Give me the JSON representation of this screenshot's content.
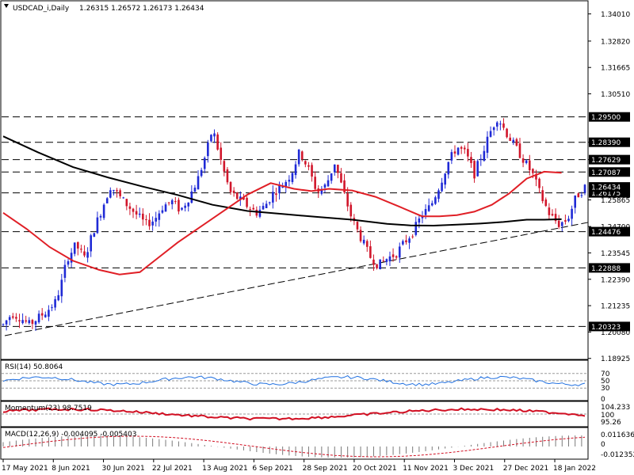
{
  "colors": {
    "background": "#ffffff",
    "candle_up": "#1f2ad6",
    "candle_down": "#d1162b",
    "ma_short": "#e01f26",
    "ma_long": "#000000",
    "level_label_bg": "#000000",
    "level_label_text": "#ffffff",
    "rsi": "#1f6fe0",
    "momentum": "#d10f22",
    "macd_signal": "#d10f22",
    "macd_hist": "#7a7a7a"
  },
  "header": {
    "symbol": "USDCAD_i,Daily",
    "ohlc": "1.26315 1.26572 1.26173 1.26434"
  },
  "chart_data": [
    {
      "type": "candlestick",
      "name": "main",
      "ylim": [
        1.1895,
        1.3455
      ],
      "price_ticks": [
        "1.34010",
        "1.32820",
        "1.31665",
        "1.30510",
        "1.28390",
        "1.27629",
        "1.25865",
        "1.24700",
        "1.23545",
        "1.22390",
        "1.21235",
        "1.20080",
        "1.18925"
      ],
      "levels": [
        {
          "label": "1.29500",
          "value": 1.295
        },
        {
          "label": "1.28390",
          "value": 1.2839
        },
        {
          "label": "1.27629",
          "value": 1.27629
        },
        {
          "label": "1.27087",
          "value": 1.27087
        },
        {
          "label": "1.26175",
          "value": 1.26175
        },
        {
          "label": "1.24476",
          "value": 1.24476
        },
        {
          "label": "1.22888",
          "value": 1.22888
        },
        {
          "label": "1.20323",
          "value": 1.20323
        }
      ],
      "current_price": {
        "label": "1.26434",
        "value": 1.26434
      },
      "trendline": {
        "from": [
          "2021-05-17",
          1.1992
        ],
        "to": [
          "2022-01-25",
          1.2488
        ]
      },
      "ma_short_path": [
        [
          0,
          1.253
        ],
        [
          0.04,
          1.246
        ],
        [
          0.08,
          1.238
        ],
        [
          0.12,
          1.232
        ],
        [
          0.165,
          1.228
        ],
        [
          0.2,
          1.226
        ],
        [
          0.235,
          1.227
        ],
        [
          0.265,
          1.233
        ],
        [
          0.3,
          1.24
        ],
        [
          0.34,
          1.247
        ],
        [
          0.38,
          1.254
        ],
        [
          0.42,
          1.261
        ],
        [
          0.46,
          1.266
        ],
        [
          0.5,
          1.2635
        ],
        [
          0.53,
          1.2625
        ],
        [
          0.56,
          1.2635
        ],
        [
          0.6,
          1.2628
        ],
        [
          0.64,
          1.26
        ],
        [
          0.68,
          1.2558
        ],
        [
          0.72,
          1.2515
        ],
        [
          0.75,
          1.2515
        ],
        [
          0.78,
          1.252
        ],
        [
          0.81,
          1.2535
        ],
        [
          0.84,
          1.2565
        ],
        [
          0.87,
          1.2615
        ],
        [
          0.9,
          1.268
        ],
        [
          0.93,
          1.271
        ],
        [
          0.96,
          1.2705
        ]
      ],
      "ma_long_path": [
        [
          0,
          1.2865
        ],
        [
          0.06,
          1.2795
        ],
        [
          0.12,
          1.273
        ],
        [
          0.18,
          1.2685
        ],
        [
          0.24,
          1.2645
        ],
        [
          0.3,
          1.2608
        ],
        [
          0.36,
          1.2565
        ],
        [
          0.42,
          1.2538
        ],
        [
          0.48,
          1.2525
        ],
        [
          0.54,
          1.2512
        ],
        [
          0.6,
          1.25
        ],
        [
          0.66,
          1.2482
        ],
        [
          0.7,
          1.2475
        ],
        [
          0.74,
          1.2474
        ],
        [
          0.78,
          1.2478
        ],
        [
          0.82,
          1.2483
        ],
        [
          0.86,
          1.249
        ],
        [
          0.9,
          1.25
        ],
        [
          0.93,
          1.25
        ],
        [
          0.96,
          1.2502
        ]
      ],
      "price_path": [
        [
          0,
          1.204
        ],
        [
          0.015,
          1.209
        ],
        [
          0.03,
          1.207
        ],
        [
          0.045,
          1.204
        ],
        [
          0.06,
          1.207
        ],
        [
          0.075,
          1.21
        ],
        [
          0.09,
          1.214
        ],
        [
          0.1,
          1.222
        ],
        [
          0.11,
          1.233
        ],
        [
          0.125,
          1.239
        ],
        [
          0.14,
          1.233
        ],
        [
          0.155,
          1.245
        ],
        [
          0.17,
          1.255
        ],
        [
          0.185,
          1.265
        ],
        [
          0.2,
          1.26
        ],
        [
          0.215,
          1.256
        ],
        [
          0.23,
          1.252
        ],
        [
          0.245,
          1.248
        ],
        [
          0.26,
          1.25
        ],
        [
          0.275,
          1.256
        ],
        [
          0.29,
          1.258
        ],
        [
          0.305,
          1.254
        ],
        [
          0.32,
          1.26
        ],
        [
          0.335,
          1.268
        ],
        [
          0.35,
          1.28
        ],
        [
          0.36,
          1.29
        ],
        [
          0.375,
          1.275
        ],
        [
          0.39,
          1.262
        ],
        [
          0.405,
          1.259
        ],
        [
          0.42,
          1.256
        ],
        [
          0.435,
          1.253
        ],
        [
          0.45,
          1.256
        ],
        [
          0.465,
          1.262
        ],
        [
          0.48,
          1.265
        ],
        [
          0.495,
          1.27
        ],
        [
          0.51,
          1.28
        ],
        [
          0.525,
          1.272
        ],
        [
          0.54,
          1.262
        ],
        [
          0.555,
          1.265
        ],
        [
          0.57,
          1.275
        ],
        [
          0.585,
          1.262
        ],
        [
          0.6,
          1.25
        ],
        [
          0.615,
          1.242
        ],
        [
          0.63,
          1.234
        ],
        [
          0.645,
          1.23
        ],
        [
          0.66,
          1.233
        ],
        [
          0.675,
          1.235
        ],
        [
          0.69,
          1.24
        ],
        [
          0.705,
          1.245
        ],
        [
          0.72,
          1.252
        ],
        [
          0.735,
          1.256
        ],
        [
          0.75,
          1.265
        ],
        [
          0.765,
          1.275
        ],
        [
          0.78,
          1.282
        ],
        [
          0.795,
          1.279
        ],
        [
          0.81,
          1.27
        ],
        [
          0.825,
          1.28
        ],
        [
          0.84,
          1.29
        ],
        [
          0.85,
          1.295
        ],
        [
          0.865,
          1.288
        ],
        [
          0.88,
          1.282
        ],
        [
          0.895,
          1.276
        ],
        [
          0.91,
          1.27
        ],
        [
          0.925,
          1.26
        ],
        [
          0.94,
          1.252
        ],
        [
          0.955,
          1.248
        ],
        [
          0.97,
          1.25
        ],
        [
          0.985,
          1.26
        ],
        [
          1.0,
          1.2643
        ]
      ]
    },
    {
      "type": "line",
      "name": "rsi",
      "title": "RSI(14) 50.8064",
      "ylim": [
        0,
        100
      ],
      "ticks": [
        "70",
        "50",
        "30",
        "0"
      ],
      "levels": [
        70,
        50,
        30
      ]
    },
    {
      "type": "line",
      "name": "momentum",
      "title": "Momentum(23) 98.7519",
      "ticks": [
        "104.233",
        "100",
        "95.26"
      ]
    },
    {
      "type": "bar",
      "name": "macd",
      "title": "MACD(12,26,9) -0.004095 -0.005403",
      "ticks": [
        "0.011636",
        "0",
        "-0.012352"
      ]
    }
  ],
  "dates": [
    "17 May 2021",
    "8 Jun 2021",
    "30 Jun 2021",
    "22 Jul 2021",
    "13 Aug 2021",
    "6 Sep 2021",
    "28 Sep 2021",
    "20 Oct 2021",
    "11 Nov 2021",
    "3 Dec 2021",
    "27 Dec 2021",
    "18 Jan 2022"
  ]
}
